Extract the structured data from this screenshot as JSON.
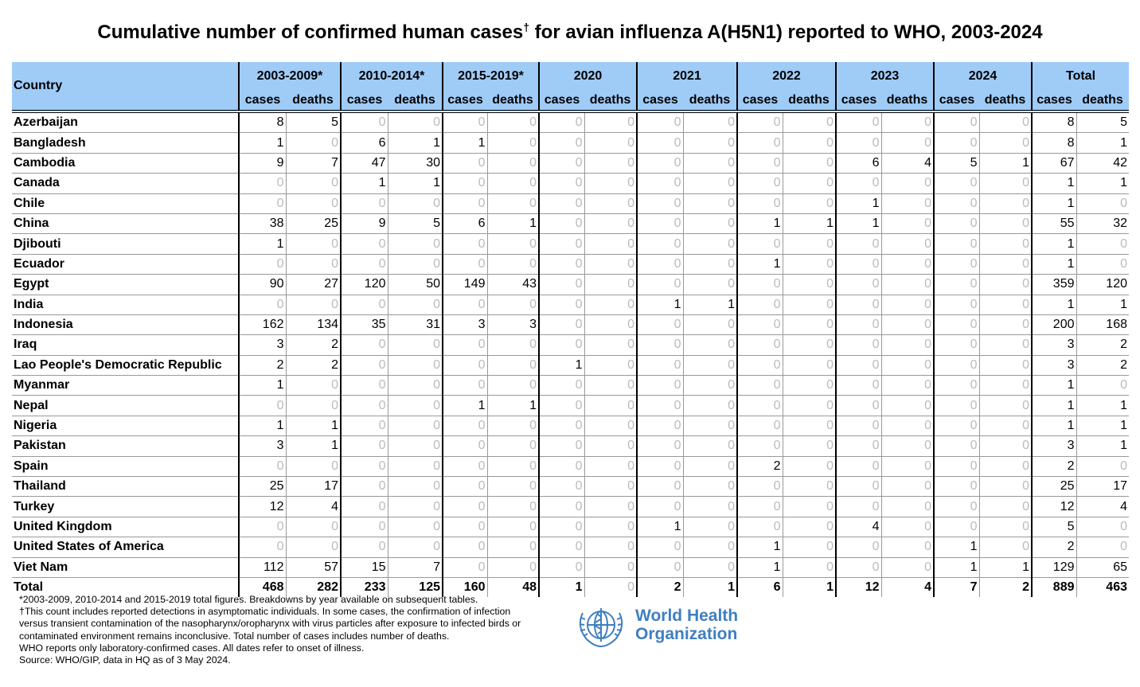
{
  "title": "Cumulative number of confirmed human cases",
  "title_mark": "†",
  "title_rest": " for avian influenza A(H5N1) reported to WHO, 2003-2024",
  "header": {
    "country": "Country",
    "groups": [
      "2003-2009*",
      "2010-2014*",
      "2015-2019*",
      "2020",
      "2021",
      "2022",
      "2023",
      "2024",
      "Total"
    ],
    "cases": "cases",
    "deaths": "deaths"
  },
  "colors": {
    "header_bg": "#9fcbf7",
    "zero": "#bbbbbb",
    "logo": "#3f7fc1"
  },
  "rows": [
    {
      "country": "Azerbaijan",
      "values": [
        8,
        5,
        0,
        0,
        0,
        0,
        0,
        0,
        0,
        0,
        0,
        0,
        0,
        0,
        0,
        0,
        8,
        5
      ]
    },
    {
      "country": "Bangladesh",
      "values": [
        1,
        0,
        6,
        1,
        1,
        0,
        0,
        0,
        0,
        0,
        0,
        0,
        0,
        0,
        0,
        0,
        8,
        1
      ]
    },
    {
      "country": "Cambodia",
      "values": [
        9,
        7,
        47,
        30,
        0,
        0,
        0,
        0,
        0,
        0,
        0,
        0,
        6,
        4,
        5,
        1,
        67,
        42
      ]
    },
    {
      "country": "Canada",
      "values": [
        0,
        0,
        1,
        1,
        0,
        0,
        0,
        0,
        0,
        0,
        0,
        0,
        0,
        0,
        0,
        0,
        1,
        1
      ]
    },
    {
      "country": "Chile",
      "values": [
        0,
        0,
        0,
        0,
        0,
        0,
        0,
        0,
        0,
        0,
        0,
        0,
        1,
        0,
        0,
        0,
        1,
        0
      ]
    },
    {
      "country": "China",
      "values": [
        38,
        25,
        9,
        5,
        6,
        1,
        0,
        0,
        0,
        0,
        1,
        1,
        1,
        0,
        0,
        0,
        55,
        32
      ]
    },
    {
      "country": "Djibouti",
      "values": [
        1,
        0,
        0,
        0,
        0,
        0,
        0,
        0,
        0,
        0,
        0,
        0,
        0,
        0,
        0,
        0,
        1,
        0
      ]
    },
    {
      "country": "Ecuador",
      "values": [
        0,
        0,
        0,
        0,
        0,
        0,
        0,
        0,
        0,
        0,
        1,
        0,
        0,
        0,
        0,
        0,
        1,
        0
      ]
    },
    {
      "country": "Egypt",
      "values": [
        90,
        27,
        120,
        50,
        149,
        43,
        0,
        0,
        0,
        0,
        0,
        0,
        0,
        0,
        0,
        0,
        359,
        120
      ]
    },
    {
      "country": "India",
      "values": [
        0,
        0,
        0,
        0,
        0,
        0,
        0,
        0,
        1,
        1,
        0,
        0,
        0,
        0,
        0,
        0,
        1,
        1
      ]
    },
    {
      "country": "Indonesia",
      "values": [
        162,
        134,
        35,
        31,
        3,
        3,
        0,
        0,
        0,
        0,
        0,
        0,
        0,
        0,
        0,
        0,
        200,
        168
      ]
    },
    {
      "country": "Iraq",
      "values": [
        3,
        2,
        0,
        0,
        0,
        0,
        0,
        0,
        0,
        0,
        0,
        0,
        0,
        0,
        0,
        0,
        3,
        2
      ]
    },
    {
      "country": "Lao People's Democratic Republic",
      "values": [
        2,
        2,
        0,
        0,
        0,
        0,
        1,
        0,
        0,
        0,
        0,
        0,
        0,
        0,
        0,
        0,
        3,
        2
      ]
    },
    {
      "country": "Myanmar",
      "values": [
        1,
        0,
        0,
        0,
        0,
        0,
        0,
        0,
        0,
        0,
        0,
        0,
        0,
        0,
        0,
        0,
        1,
        0
      ]
    },
    {
      "country": "Nepal",
      "values": [
        0,
        0,
        0,
        0,
        1,
        1,
        0,
        0,
        0,
        0,
        0,
        0,
        0,
        0,
        0,
        0,
        1,
        1
      ]
    },
    {
      "country": "Nigeria",
      "values": [
        1,
        1,
        0,
        0,
        0,
        0,
        0,
        0,
        0,
        0,
        0,
        0,
        0,
        0,
        0,
        0,
        1,
        1
      ]
    },
    {
      "country": "Pakistan",
      "values": [
        3,
        1,
        0,
        0,
        0,
        0,
        0,
        0,
        0,
        0,
        0,
        0,
        0,
        0,
        0,
        0,
        3,
        1
      ]
    },
    {
      "country": "Spain",
      "values": [
        0,
        0,
        0,
        0,
        0,
        0,
        0,
        0,
        0,
        0,
        2,
        0,
        0,
        0,
        0,
        0,
        2,
        0
      ]
    },
    {
      "country": "Thailand",
      "values": [
        25,
        17,
        0,
        0,
        0,
        0,
        0,
        0,
        0,
        0,
        0,
        0,
        0,
        0,
        0,
        0,
        25,
        17
      ]
    },
    {
      "country": "Turkey",
      "values": [
        12,
        4,
        0,
        0,
        0,
        0,
        0,
        0,
        0,
        0,
        0,
        0,
        0,
        0,
        0,
        0,
        12,
        4
      ]
    },
    {
      "country": "United Kingdom",
      "values": [
        0,
        0,
        0,
        0,
        0,
        0,
        0,
        0,
        1,
        0,
        0,
        0,
        4,
        0,
        0,
        0,
        5,
        0
      ]
    },
    {
      "country": "United States of America",
      "values": [
        0,
        0,
        0,
        0,
        0,
        0,
        0,
        0,
        0,
        0,
        1,
        0,
        0,
        0,
        1,
        0,
        2,
        0
      ]
    },
    {
      "country": "Viet Nam",
      "values": [
        112,
        57,
        15,
        7,
        0,
        0,
        0,
        0,
        0,
        0,
        1,
        0,
        0,
        0,
        1,
        1,
        129,
        65
      ]
    }
  ],
  "total": {
    "country": "Total",
    "values": [
      468,
      282,
      233,
      125,
      160,
      48,
      1,
      0,
      2,
      1,
      6,
      1,
      12,
      4,
      7,
      2,
      889,
      463
    ]
  },
  "notes": [
    "*2003-2009, 2010-2014 and 2015-2019 total figures. Breakdowns by year available on subsequent tables.",
    "†This count includes reported detections in asymptomatic individuals. In some cases, the confirmation of infection versus transient contamination of the nasopharynx/oropharynx with virus particles after exposure to infected birds or contaminated environment remains inconclusive. Total number of cases includes number of deaths.",
    "WHO reports only laboratory-confirmed cases. All dates refer to onset of illness.",
    "Source: WHO/GIP, data in HQ as of 3 May 2024."
  ],
  "logo": {
    "line1": "World Health",
    "line2": "Organization"
  }
}
